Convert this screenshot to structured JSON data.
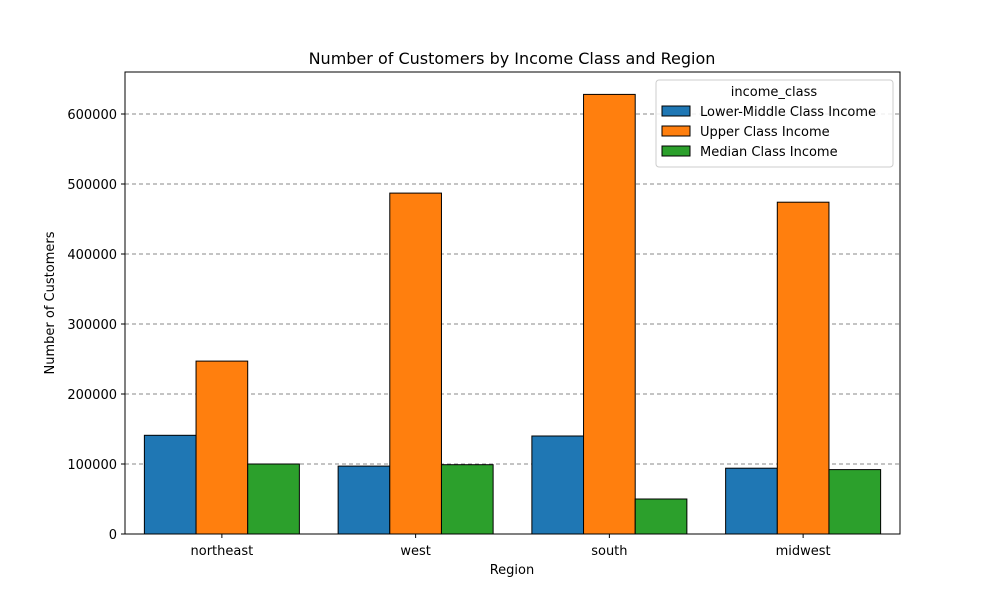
{
  "chart_data": {
    "type": "bar",
    "title": "Number of Customers by Income Class and Region",
    "xlabel": "Region",
    "ylabel": "Number of Customers",
    "categories": [
      "northeast",
      "west",
      "south",
      "midwest"
    ],
    "series": [
      {
        "name": "Lower-Middle Class Income",
        "color": "#1f77b4",
        "values": [
          141000,
          97000,
          140000,
          94000
        ]
      },
      {
        "name": "Upper Class Income",
        "color": "#ff7f0e",
        "values": [
          247000,
          487000,
          628000,
          474000
        ]
      },
      {
        "name": "Median Class Income",
        "color": "#2ca02c",
        "values": [
          100000,
          99000,
          50000,
          92000
        ]
      }
    ],
    "ylim": [
      0,
      660000
    ],
    "yticks": [
      0,
      100000,
      200000,
      300000,
      400000,
      500000,
      600000
    ],
    "ytick_labels": [
      "0",
      "100000",
      "200000",
      "300000",
      "400000",
      "500000",
      "600000"
    ],
    "grid": "horizontal dashed",
    "legend": {
      "title": "income_class",
      "placement": "top-right"
    }
  }
}
